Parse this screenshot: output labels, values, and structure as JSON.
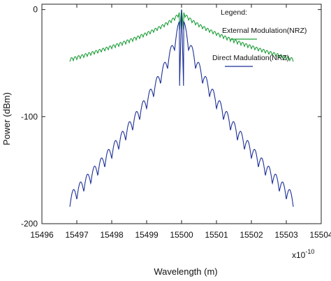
{
  "chart_data": {
    "type": "line",
    "title": "",
    "xlabel": "Wavelength (m)",
    "ylabel": "Power (dBm)",
    "x_multiplier_label": "x10",
    "x_multiplier_exponent": "-10",
    "xlim": [
      15496,
      15504
    ],
    "ylim": [
      -200,
      5
    ],
    "x_ticks": [
      "15496",
      "15497",
      "15498",
      "15499",
      "15500",
      "15501",
      "15502",
      "15503",
      "15504"
    ],
    "y_ticks": [
      "0",
      "-100",
      "-200"
    ],
    "grid": false,
    "legend": {
      "title": "Legend:",
      "placement": "top-right"
    },
    "series": [
      {
        "name": "External Modulation(NRZ)",
        "color": "#1e9e3a",
        "x_range": [
          15496.8,
          15503.2
        ],
        "peak": {
          "x": 15500.0,
          "y": 0
        },
        "edge_level": -47,
        "ripple_period": 0.1
      },
      {
        "name": "Direct Madulation(NRZ)",
        "color": "#1c2f96",
        "x_range": [
          15496.8,
          15503.2
        ],
        "peak": {
          "x": 15500.0,
          "y": 0
        },
        "edge_level": -178,
        "ripple_period": 0.2
      }
    ]
  }
}
